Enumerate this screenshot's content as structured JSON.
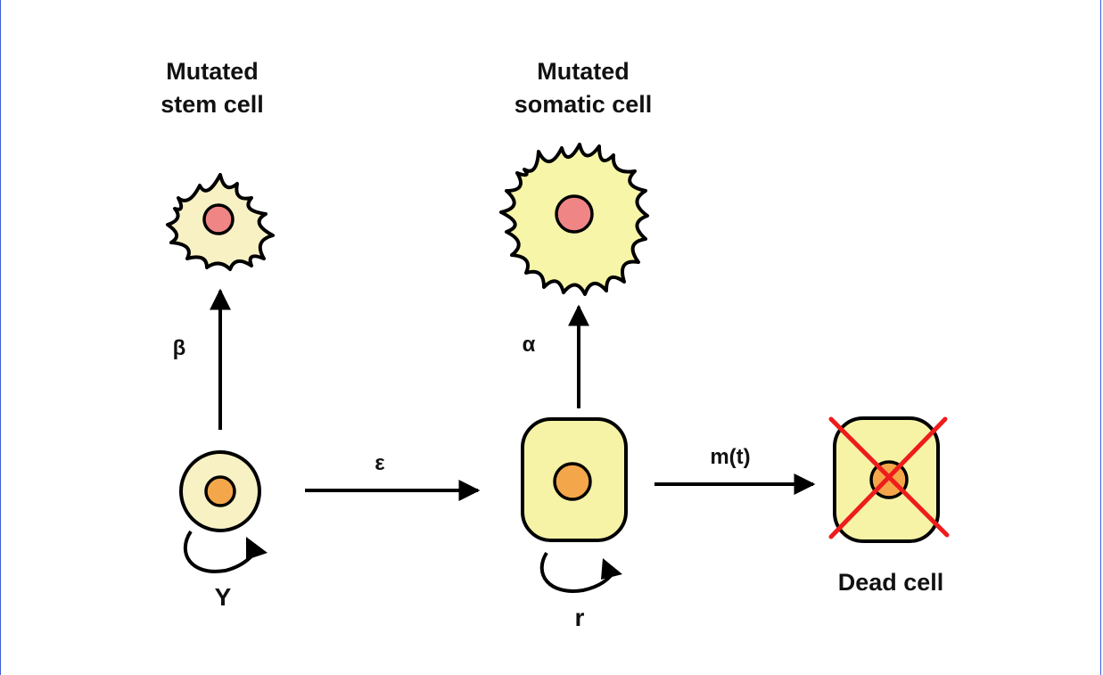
{
  "titles": {
    "mutated_stem": [
      "Mutated",
      "stem cell"
    ],
    "mutated_somatic": [
      "Mutated",
      "somatic cell"
    ],
    "dead": "Dead cell"
  },
  "params": {
    "beta": "β",
    "alpha": "α",
    "epsilon": "ε",
    "mortality": "m(t)",
    "gamma": "Υ",
    "r": "r"
  },
  "colors": {
    "stem_body": "#f7f1c4",
    "somatic_body": "#f6f3a6",
    "mutated_stem_body": "#f7f1c4",
    "mutated_somatic_body": "#f6f5a8",
    "nucleus": "#f4a64a",
    "mutated_nucleus": "#ef8585",
    "cross": "#ee1c1c",
    "frame": "#3b5bdb"
  }
}
